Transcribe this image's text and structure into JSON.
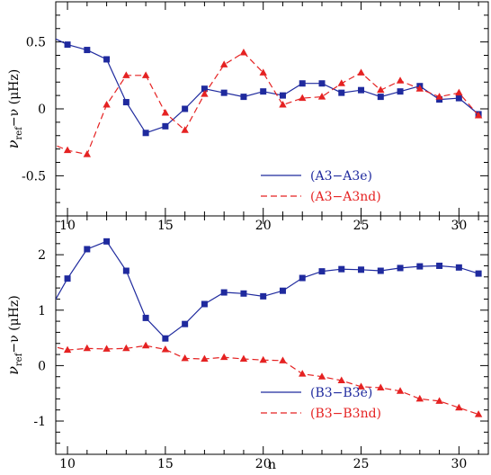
{
  "chart_data": [
    {
      "type": "line",
      "panel": "top",
      "x": [
        9,
        10,
        11,
        12,
        13,
        14,
        15,
        16,
        17,
        18,
        19,
        20,
        21,
        22,
        23,
        24,
        25,
        26,
        27,
        28,
        29,
        30,
        31
      ],
      "xlim": [
        9.4,
        31.5
      ],
      "ylim": [
        -0.8,
        0.8
      ],
      "yticks": [
        -0.5,
        0,
        0.5
      ],
      "ytick_labels": [
        "-0.5",
        "0",
        "0.5"
      ],
      "xticks": [
        10,
        15,
        20,
        25,
        30
      ],
      "xtick_labels": [
        "10",
        "15",
        "20",
        "25",
        "30"
      ],
      "ylabel_main": "ν",
      "ylabel_sub": "ref",
      "ylabel_rest": "−ν  (μHz)",
      "xlabel": "",
      "grid": false,
      "legend_position": "bottom-right",
      "series": [
        {
          "name": "(A3−A3e)",
          "color": "#1f2a9e",
          "line": "solid",
          "marker": "square",
          "values": [
            0.55,
            0.48,
            0.44,
            0.37,
            0.05,
            -0.18,
            -0.13,
            0.0,
            0.15,
            0.12,
            0.09,
            0.13,
            0.1,
            0.19,
            0.19,
            0.12,
            0.14,
            0.09,
            0.13,
            0.17,
            0.07,
            0.08,
            -0.04
          ]
        },
        {
          "name": "(A3−A3nd)",
          "color": "#e52222",
          "line": "dashed",
          "marker": "triangle",
          "values": [
            -0.25,
            -0.31,
            -0.34,
            0.03,
            0.25,
            0.25,
            -0.03,
            -0.16,
            0.11,
            0.33,
            0.42,
            0.27,
            0.03,
            0.08,
            0.09,
            0.19,
            0.27,
            0.14,
            0.21,
            0.15,
            0.09,
            0.12,
            -0.05
          ]
        }
      ]
    },
    {
      "type": "line",
      "panel": "bottom",
      "x": [
        9,
        10,
        11,
        12,
        13,
        14,
        15,
        16,
        17,
        18,
        19,
        20,
        21,
        22,
        23,
        24,
        25,
        26,
        27,
        28,
        29,
        30,
        31
      ],
      "xlim": [
        9.4,
        31.5
      ],
      "ylim": [
        -1.6,
        2.7
      ],
      "yticks": [
        -1,
        0,
        1,
        2
      ],
      "ytick_labels": [
        "-1",
        "0",
        "1",
        "2"
      ],
      "xticks": [
        10,
        15,
        20,
        25,
        30
      ],
      "xtick_labels": [
        "10",
        "15",
        "20",
        "25",
        "30"
      ],
      "ylabel_main": "ν",
      "ylabel_sub": "ref",
      "ylabel_rest": "−ν  (μHz)",
      "xlabel": "n",
      "grid": false,
      "legend_position": "bottom-right",
      "series": [
        {
          "name": "(B3−B3e)",
          "color": "#1f2a9e",
          "line": "solid",
          "marker": "square",
          "values": [
            0.95,
            1.57,
            2.1,
            2.24,
            1.71,
            0.86,
            0.49,
            0.75,
            1.11,
            1.32,
            1.3,
            1.25,
            1.35,
            1.58,
            1.7,
            1.74,
            1.73,
            1.71,
            1.76,
            1.79,
            1.8,
            1.77,
            1.66
          ]
        },
        {
          "name": "(B3−B3nd)",
          "color": "#e52222",
          "line": "dashed",
          "marker": "triangle",
          "values": [
            0.37,
            0.28,
            0.31,
            0.3,
            0.31,
            0.36,
            0.29,
            0.13,
            0.12,
            0.15,
            0.12,
            0.1,
            0.09,
            -0.15,
            -0.2,
            -0.27,
            -0.38,
            -0.4,
            -0.46,
            -0.6,
            -0.64,
            -0.76,
            -0.88
          ]
        }
      ]
    }
  ]
}
